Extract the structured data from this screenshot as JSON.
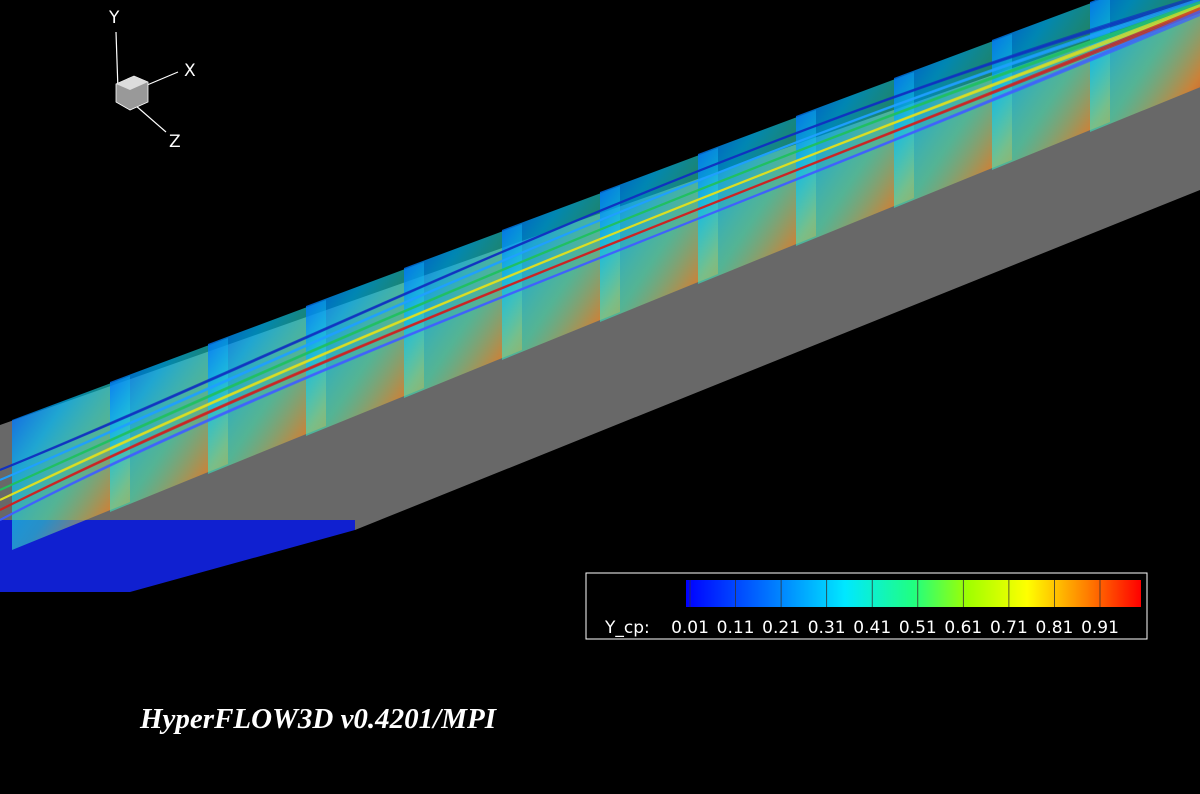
{
  "axis_triad": {
    "labels": [
      "Y",
      "X",
      "Z"
    ]
  },
  "legend": {
    "label": "Y_cp:",
    "ticks": [
      0.01,
      0.11,
      0.21,
      0.31,
      0.41,
      0.51,
      0.61,
      0.71,
      0.81,
      0.91
    ]
  },
  "footer": {
    "title": "HyperFLOW3D v0.4201/MPI"
  }
}
